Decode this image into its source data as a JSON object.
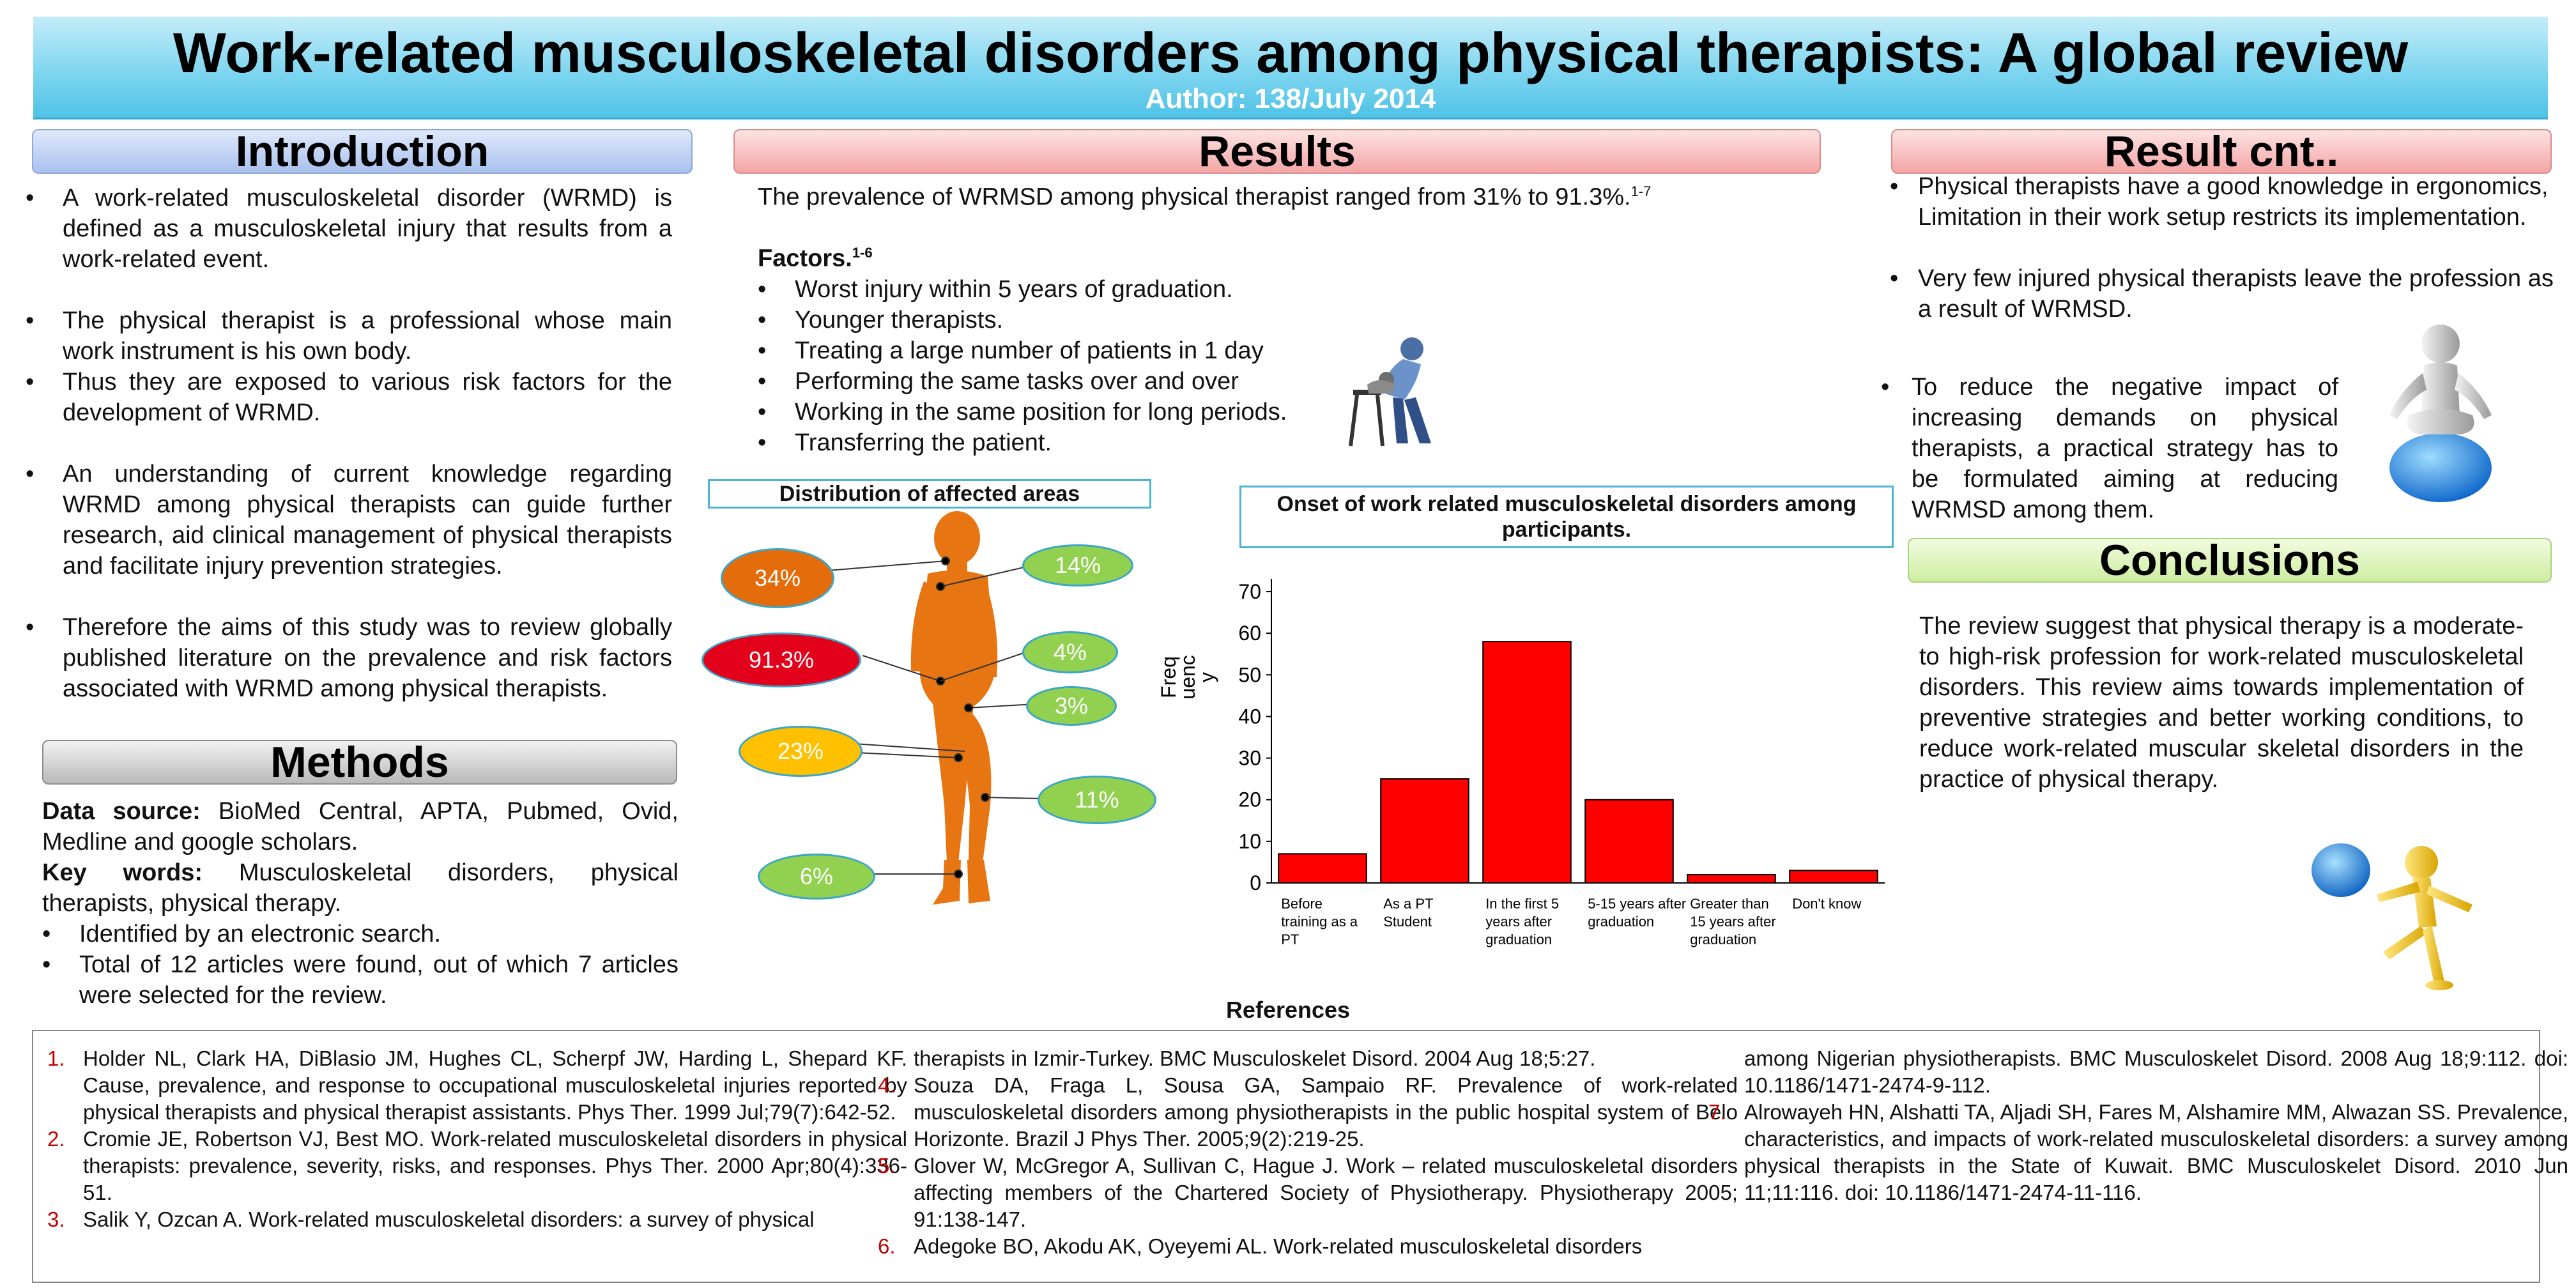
{
  "header": {
    "title": "Work-related musculoskeletal disorders among physical therapists: A global review",
    "author": "Author: 138/July 2014"
  },
  "introduction": {
    "heading": "Introduction",
    "paragraphs": [
      "A work-related musculoskeletal disorder (WRMD) is defined as a musculoskeletal injury that results from a work-related event.",
      "The physical therapist is a professional whose main work instrument is his own body.",
      "Thus they are exposed to various risk factors for the development of WRMD.",
      "An understanding of current knowledge regarding WRMD among physical therapists can guide further research, aid clinical management of physical therapists and facilitate injury prevention strategies.",
      "Therefore the aims of this study was to review globally published literature on the prevalence and risk factors associated with WRMD among physical therapists."
    ]
  },
  "methods": {
    "heading": "Methods",
    "data_source_label": "Data source:",
    "data_source_text": "BioMed Central, APTA, Pubmed, Ovid, Medline and google scholars.",
    "keywords_label": "Key words:",
    "keywords_text": "Musculoskeletal disorders, physical therapists, physical therapy.",
    "bullets": [
      "Identified by an electronic search.",
      "Total of 12 articles were found, out of which 7 articles were selected for the review."
    ]
  },
  "results": {
    "heading": "Results",
    "prevalence": "The prevalence of WRMSD among physical therapist ranged from 31% to 91.3%.",
    "prevalence_sup": "1-7",
    "factors_label": "Factors.",
    "factors_sup": "1-6",
    "factors": [
      "Worst injury within 5 years of graduation.",
      "Younger therapists.",
      "Treating a large number of patients in 1 day",
      "Performing the same tasks over and over",
      "Working in the same position for long periods.",
      "Transferring the patient."
    ],
    "body_figure": {
      "title": "Distribution of affected areas",
      "labels": [
        {
          "text": "34%",
          "color": "#e46c0a"
        },
        {
          "text": "14%",
          "color": "#92d050"
        },
        {
          "text": "91.3%",
          "color": "#e3001b"
        },
        {
          "text": "4%",
          "color": "#92d050"
        },
        {
          "text": "3%",
          "color": "#92d050"
        },
        {
          "text": "23%",
          "color": "#ffc000"
        },
        {
          "text": "11%",
          "color": "#92d050"
        },
        {
          "text": "6%",
          "color": "#92d050"
        }
      ]
    }
  },
  "result_cnt": {
    "heading": "Result cnt..",
    "bullets": [
      "Physical therapists have a good knowledge in ergonomics, Limitation in their work setup restricts its implementation.",
      "Very few injured physical therapists leave the profession as a result of WRMSD.",
      "To reduce the negative impact of increasing demands on physical therapists, a practical strategy has to be formulated aiming at reducing WRMSD among them."
    ]
  },
  "conclusions": {
    "heading": "Conclusions",
    "text": "The review suggest that physical therapy is a moderate- to high-risk profession for work-related musculoskeletal disorders. This review aims towards implementation of preventive strategies and better working conditions, to reduce work-related muscular skeletal disorders in the practice of physical therapy."
  },
  "chart_data": {
    "type": "bar",
    "title": "Onset of work related musculoskeletal disorders among participants.",
    "ylabel_lines": [
      "Freq",
      "uenc",
      "y"
    ],
    "categories": [
      [
        "Before",
        "training as a",
        "PT"
      ],
      [
        "As a PT",
        "Student"
      ],
      [
        "In the first 5",
        "years after",
        "graduation"
      ],
      [
        "5-15 years after",
        "graduation"
      ],
      [
        "Greater than",
        "15 years after",
        "graduation"
      ],
      [
        "Don't know"
      ]
    ],
    "values": [
      7,
      25,
      58,
      20,
      2,
      3
    ],
    "ylim": [
      0,
      70
    ],
    "yticks": [
      0,
      10,
      20,
      30,
      40,
      50,
      60,
      70
    ],
    "bar_color": "#ff0000",
    "grid": false
  },
  "references": {
    "heading": "References",
    "columns": [
      [
        {
          "num": "1.",
          "text": "Holder NL, Clark HA, DiBlasio JM, Hughes CL, Scherpf JW, Harding L, Shepard KF. Cause, prevalence, and response to occupational musculoskeletal injuries reported by physical therapists and physical therapist assistants. Phys Ther. 1999 Jul;79(7):642-52."
        },
        {
          "num": "2.",
          "text": "Cromie JE, Robertson VJ, Best MO. Work-related musculoskeletal disorders in physical therapists: prevalence, severity, risks, and responses. Phys Ther. 2000 Apr;80(4):336-51."
        },
        {
          "num": "3.",
          "text": "Salik Y, Ozcan A. Work-related musculoskeletal disorders: a survey of physical"
        }
      ],
      [
        {
          "num": "",
          "text": "therapists in Izmir-Turkey. BMC Musculoskelet Disord. 2004 Aug 18;5:27."
        },
        {
          "num": "4.",
          "text": "Souza DA, Fraga L, Sousa GA, Sampaio RF. Prevalence of work-related musculoskeletal disorders among physiotherapists in the public hospital system of Belo Horizonte. Brazil J Phys Ther. 2005;9(2):219-25."
        },
        {
          "num": "5.",
          "text": "Glover W, McGregor A, Sullivan C, Hague J. Work – related musculoskeletal disorders affecting members of the Chartered Society of Physiotherapy. Physiotherapy 2005; 91:138-147."
        },
        {
          "num": "6.",
          "text": "Adegoke BO, Akodu AK, Oyeyemi AL. Work-related musculoskeletal disorders"
        }
      ],
      [
        {
          "num": "",
          "text": "among Nigerian physiotherapists. BMC Musculoskelet Disord. 2008 Aug 18;9:112. doi: 10.1186/1471-2474-9-112."
        },
        {
          "num": "7.",
          "text": "Alrowayeh HN, Alshatti TA, Aljadi SH, Fares M, Alshamire MM, Alwazan SS. Prevalence, characteristics, and impacts of work-related musculoskeletal disorders: a survey among physical therapists in the State of Kuwait. BMC Musculoskelet Disord. 2010 Jun 11;11:116. doi: 10.1186/1471-2474-11-116."
        }
      ]
    ]
  }
}
